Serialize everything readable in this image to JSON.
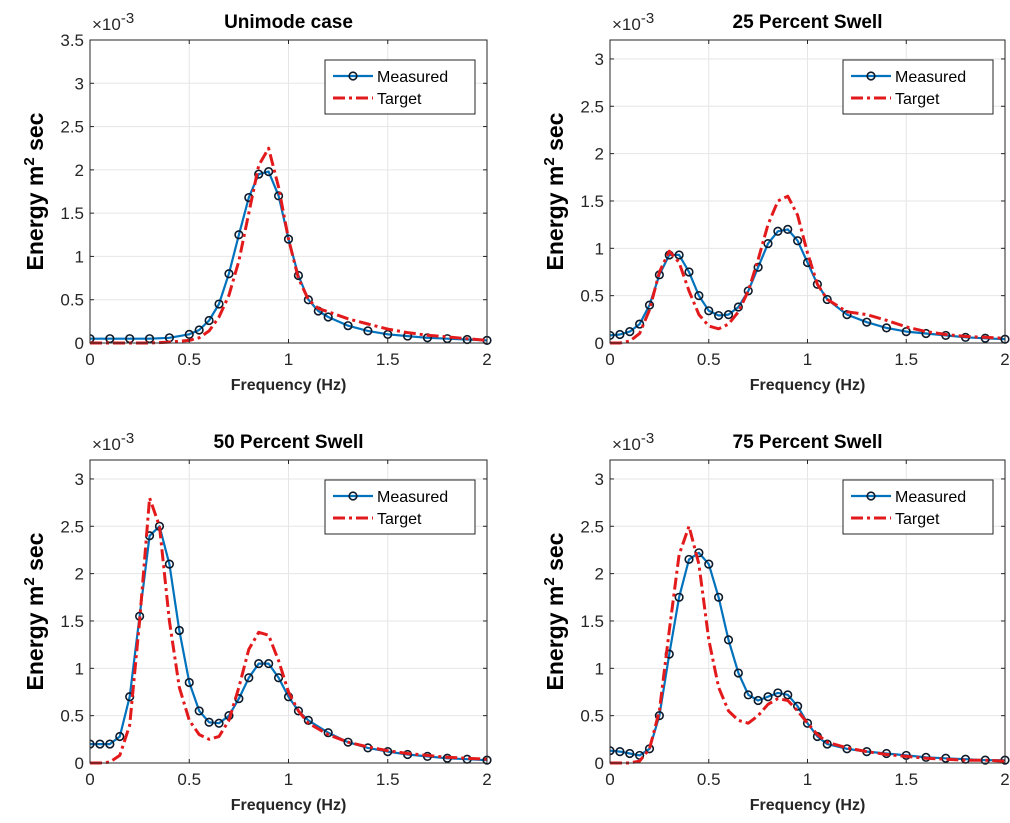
{
  "chart_data": [
    {
      "type": "line",
      "title": "Unimode case",
      "xlabel": "Frequency (Hz)",
      "ylabel": "Energy m^2 sec",
      "ylabel_main": "Energy m",
      "ylabel_sup": "2",
      "ylabel_tail": " sec",
      "y_multiplier": "×10",
      "y_multiplier_exp": "-3",
      "xlim": [
        0,
        2
      ],
      "ylim": [
        0,
        3.5
      ],
      "xticks": [
        0,
        0.5,
        1,
        1.5,
        2
      ],
      "yticks": [
        0,
        0.5,
        1,
        1.5,
        2,
        2.5,
        3,
        3.5
      ],
      "grid": true,
      "legend": "top-right",
      "series": [
        {
          "name": "Measured",
          "color": "#0072BD",
          "marker": "circle",
          "style": "solid",
          "x": [
            0,
            0.1,
            0.2,
            0.3,
            0.4,
            0.5,
            0.55,
            0.6,
            0.65,
            0.7,
            0.75,
            0.8,
            0.85,
            0.9,
            0.95,
            1.0,
            1.05,
            1.1,
            1.15,
            1.2,
            1.3,
            1.4,
            1.5,
            1.6,
            1.7,
            1.8,
            1.9,
            2.0
          ],
          "y": [
            0.05,
            0.05,
            0.05,
            0.05,
            0.06,
            0.1,
            0.15,
            0.26,
            0.45,
            0.8,
            1.25,
            1.68,
            1.95,
            1.98,
            1.7,
            1.2,
            0.78,
            0.5,
            0.37,
            0.3,
            0.2,
            0.14,
            0.1,
            0.08,
            0.06,
            0.05,
            0.04,
            0.03
          ]
        },
        {
          "name": "Target",
          "color": "#E31A1C",
          "marker": "none",
          "style": "dashdot",
          "x": [
            0,
            0.1,
            0.2,
            0.3,
            0.4,
            0.5,
            0.55,
            0.6,
            0.65,
            0.7,
            0.75,
            0.8,
            0.85,
            0.9,
            0.95,
            1.0,
            1.05,
            1.1,
            1.15,
            1.2,
            1.3,
            1.4,
            1.5,
            1.6,
            1.7,
            1.8,
            1.9,
            2.0
          ],
          "y": [
            0,
            0,
            0,
            0,
            0.01,
            0.03,
            0.06,
            0.14,
            0.3,
            0.55,
            0.95,
            1.5,
            2.05,
            2.25,
            1.8,
            1.2,
            0.75,
            0.5,
            0.4,
            0.36,
            0.28,
            0.22,
            0.16,
            0.12,
            0.09,
            0.07,
            0.05,
            0.03
          ]
        }
      ]
    },
    {
      "type": "line",
      "title": "25 Percent Swell",
      "xlabel": "Frequency (Hz)",
      "ylabel": "Energy m^2 sec",
      "ylabel_main": "Energy m",
      "ylabel_sup": "2",
      "ylabel_tail": " sec",
      "y_multiplier": "×10",
      "y_multiplier_exp": "-3",
      "xlim": [
        0,
        2
      ],
      "ylim": [
        0,
        3.2
      ],
      "xticks": [
        0,
        0.5,
        1,
        1.5,
        2
      ],
      "yticks": [
        0,
        0.5,
        1,
        1.5,
        2,
        2.5,
        3
      ],
      "grid": true,
      "legend": "top-right",
      "series": [
        {
          "name": "Measured",
          "color": "#0072BD",
          "marker": "circle",
          "style": "solid",
          "x": [
            0,
            0.05,
            0.1,
            0.15,
            0.2,
            0.25,
            0.3,
            0.35,
            0.4,
            0.45,
            0.5,
            0.55,
            0.6,
            0.65,
            0.7,
            0.75,
            0.8,
            0.85,
            0.9,
            0.95,
            1.0,
            1.05,
            1.1,
            1.2,
            1.3,
            1.4,
            1.5,
            1.6,
            1.7,
            1.8,
            1.9,
            2.0
          ],
          "y": [
            0.08,
            0.09,
            0.12,
            0.2,
            0.4,
            0.72,
            0.93,
            0.93,
            0.75,
            0.5,
            0.34,
            0.29,
            0.3,
            0.38,
            0.55,
            0.8,
            1.05,
            1.18,
            1.2,
            1.08,
            0.85,
            0.62,
            0.46,
            0.3,
            0.22,
            0.16,
            0.12,
            0.1,
            0.08,
            0.06,
            0.05,
            0.04
          ]
        },
        {
          "name": "Target",
          "color": "#E31A1C",
          "marker": "none",
          "style": "dashdot",
          "x": [
            0,
            0.05,
            0.1,
            0.15,
            0.2,
            0.25,
            0.3,
            0.35,
            0.4,
            0.45,
            0.5,
            0.55,
            0.6,
            0.65,
            0.7,
            0.75,
            0.8,
            0.85,
            0.9,
            0.95,
            1.0,
            1.05,
            1.1,
            1.2,
            1.3,
            1.4,
            1.5,
            1.6,
            1.7,
            1.8,
            1.9,
            2.0
          ],
          "y": [
            0,
            0,
            0.02,
            0.1,
            0.35,
            0.75,
            0.97,
            0.85,
            0.55,
            0.3,
            0.18,
            0.15,
            0.2,
            0.33,
            0.55,
            0.88,
            1.25,
            1.5,
            1.55,
            1.35,
            0.95,
            0.62,
            0.46,
            0.33,
            0.3,
            0.24,
            0.17,
            0.12,
            0.09,
            0.07,
            0.06,
            0.05
          ]
        }
      ]
    },
    {
      "type": "line",
      "title": "50 Percent Swell",
      "xlabel": "Frequency (Hz)",
      "ylabel": "Energy m^2 sec",
      "ylabel_main": "Energy m",
      "ylabel_sup": "2",
      "ylabel_tail": " sec",
      "y_multiplier": "×10",
      "y_multiplier_exp": "-3",
      "xlim": [
        0,
        2
      ],
      "ylim": [
        0,
        3.2
      ],
      "xticks": [
        0,
        0.5,
        1,
        1.5,
        2
      ],
      "yticks": [
        0,
        0.5,
        1,
        1.5,
        2,
        2.5,
        3
      ],
      "grid": true,
      "legend": "top-right",
      "series": [
        {
          "name": "Measured",
          "color": "#0072BD",
          "marker": "circle",
          "style": "solid",
          "x": [
            0,
            0.05,
            0.1,
            0.15,
            0.2,
            0.25,
            0.3,
            0.35,
            0.4,
            0.45,
            0.5,
            0.55,
            0.6,
            0.65,
            0.7,
            0.75,
            0.8,
            0.85,
            0.9,
            0.95,
            1.0,
            1.05,
            1.1,
            1.2,
            1.3,
            1.4,
            1.5,
            1.6,
            1.7,
            1.8,
            1.9,
            2.0
          ],
          "y": [
            0.2,
            0.2,
            0.2,
            0.28,
            0.7,
            1.55,
            2.4,
            2.5,
            2.1,
            1.4,
            0.85,
            0.55,
            0.43,
            0.42,
            0.5,
            0.68,
            0.9,
            1.05,
            1.05,
            0.9,
            0.7,
            0.55,
            0.45,
            0.32,
            0.22,
            0.16,
            0.12,
            0.09,
            0.07,
            0.05,
            0.04,
            0.03
          ]
        },
        {
          "name": "Target",
          "color": "#E31A1C",
          "marker": "none",
          "style": "dashdot",
          "x": [
            0,
            0.05,
            0.1,
            0.15,
            0.2,
            0.25,
            0.3,
            0.35,
            0.4,
            0.45,
            0.5,
            0.55,
            0.6,
            0.65,
            0.7,
            0.75,
            0.8,
            0.85,
            0.9,
            0.95,
            1.0,
            1.05,
            1.1,
            1.2,
            1.3,
            1.4,
            1.5,
            1.6,
            1.7,
            1.8,
            1.9,
            2.0
          ],
          "y": [
            0,
            0,
            0.01,
            0.08,
            0.4,
            1.5,
            2.8,
            2.5,
            1.5,
            0.8,
            0.45,
            0.3,
            0.25,
            0.28,
            0.45,
            0.8,
            1.2,
            1.38,
            1.35,
            1.08,
            0.75,
            0.55,
            0.42,
            0.3,
            0.22,
            0.17,
            0.13,
            0.1,
            0.08,
            0.06,
            0.05,
            0.04
          ]
        }
      ]
    },
    {
      "type": "line",
      "title": "75 Percent Swell",
      "xlabel": "Frequency (Hz)",
      "ylabel": "Energy m^2 sec",
      "ylabel_main": "Energy m",
      "ylabel_sup": "2",
      "ylabel_tail": " sec",
      "y_multiplier": "×10",
      "y_multiplier_exp": "-3",
      "xlim": [
        0,
        2
      ],
      "ylim": [
        0,
        3.2
      ],
      "xticks": [
        0,
        0.5,
        1,
        1.5,
        2
      ],
      "yticks": [
        0,
        0.5,
        1,
        1.5,
        2,
        2.5,
        3
      ],
      "grid": true,
      "legend": "top-right",
      "series": [
        {
          "name": "Measured",
          "color": "#0072BD",
          "marker": "circle",
          "style": "solid",
          "x": [
            0,
            0.05,
            0.1,
            0.15,
            0.2,
            0.25,
            0.3,
            0.35,
            0.4,
            0.45,
            0.5,
            0.55,
            0.6,
            0.65,
            0.7,
            0.75,
            0.8,
            0.85,
            0.9,
            0.95,
            1.0,
            1.05,
            1.1,
            1.2,
            1.3,
            1.4,
            1.5,
            1.6,
            1.7,
            1.8,
            1.9,
            2.0
          ],
          "y": [
            0.13,
            0.12,
            0.1,
            0.08,
            0.15,
            0.5,
            1.15,
            1.75,
            2.15,
            2.22,
            2.1,
            1.75,
            1.3,
            0.95,
            0.72,
            0.66,
            0.7,
            0.74,
            0.72,
            0.6,
            0.42,
            0.28,
            0.2,
            0.15,
            0.12,
            0.1,
            0.08,
            0.06,
            0.05,
            0.04,
            0.03,
            0.03
          ]
        },
        {
          "name": "Target",
          "color": "#E31A1C",
          "marker": "none",
          "style": "dashdot",
          "x": [
            0,
            0.05,
            0.1,
            0.15,
            0.2,
            0.25,
            0.3,
            0.35,
            0.4,
            0.45,
            0.5,
            0.55,
            0.6,
            0.65,
            0.7,
            0.75,
            0.8,
            0.85,
            0.9,
            0.95,
            1.0,
            1.05,
            1.1,
            1.2,
            1.3,
            1.4,
            1.5,
            1.6,
            1.7,
            1.8,
            1.9,
            2.0
          ],
          "y": [
            0,
            0,
            0,
            0.02,
            0.15,
            0.55,
            1.4,
            2.2,
            2.5,
            2.1,
            1.3,
            0.8,
            0.55,
            0.45,
            0.42,
            0.5,
            0.62,
            0.68,
            0.66,
            0.55,
            0.42,
            0.3,
            0.22,
            0.16,
            0.12,
            0.09,
            0.07,
            0.05,
            0.04,
            0.03,
            0.03,
            0.02
          ]
        }
      ]
    }
  ]
}
